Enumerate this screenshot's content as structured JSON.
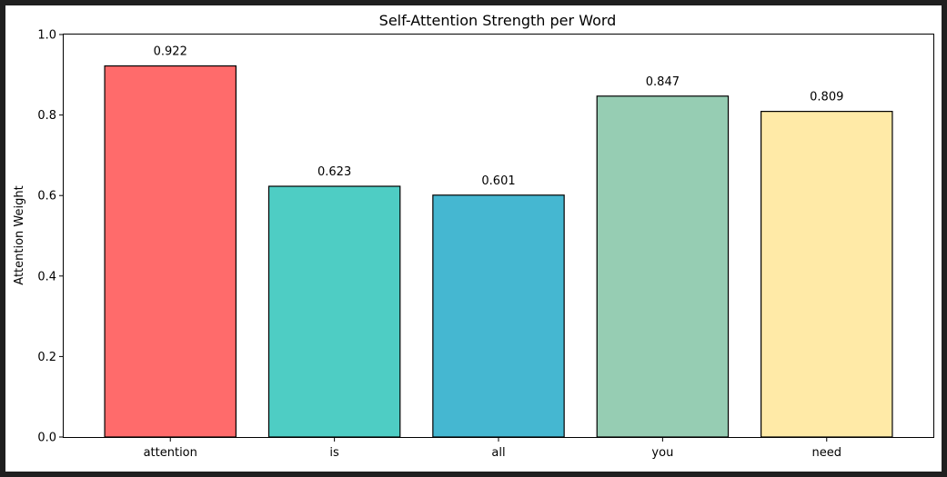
{
  "chart_data": {
    "type": "bar",
    "title": "Self-Attention Strength per Word",
    "xlabel": "",
    "ylabel": "Attention Weight",
    "categories": [
      "attention",
      "is",
      "all",
      "you",
      "need"
    ],
    "values": [
      0.922,
      0.623,
      0.601,
      0.847,
      0.809
    ],
    "value_labels": [
      "0.922",
      "0.623",
      "0.601",
      "0.847",
      "0.809"
    ],
    "bar_colors": [
      "#ff6b6b",
      "#4ecdc4",
      "#45b7d1",
      "#96cdb3",
      "#ffeaa7"
    ],
    "ylim": [
      0,
      1.0
    ],
    "yticks": [
      0.0,
      0.2,
      0.4,
      0.6,
      0.8,
      1.0
    ],
    "ytick_labels": [
      "0.0",
      "0.2",
      "0.4",
      "0.6",
      "0.8",
      "1.0"
    ],
    "grid": false,
    "legend": "none"
  }
}
